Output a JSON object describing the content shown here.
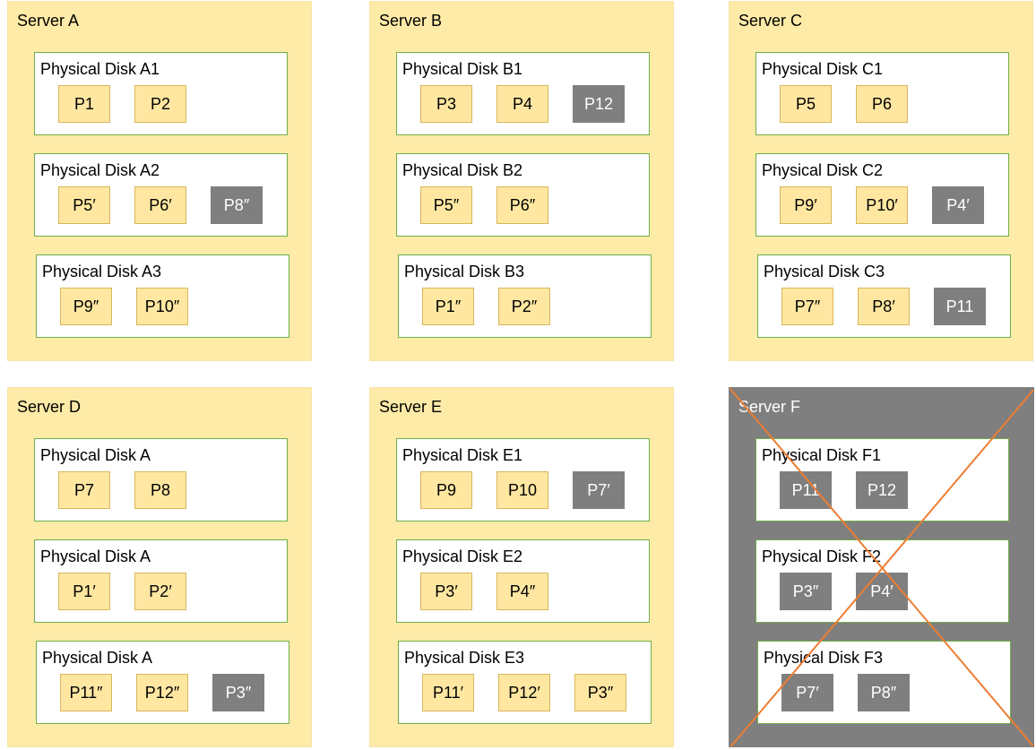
{
  "colors": {
    "server_fill": "#FFEBA8",
    "failed_fill": "#7F7F7F",
    "disk_border": "#6FAE48",
    "partition_fill": "#FFE7A1",
    "partition_border": "#D8B65A",
    "grey_partition_fill": "#7F7F7F",
    "cross_line": "#ED7D31"
  },
  "servers": [
    {
      "label": "Server A",
      "failed": false,
      "disks": [
        {
          "label": "Physical Disk A1",
          "partitions": [
            {
              "label": "P1",
              "grey": false
            },
            {
              "label": "P2",
              "grey": false
            }
          ]
        },
        {
          "label": "Physical Disk A2",
          "partitions": [
            {
              "label": "P5′",
              "grey": false
            },
            {
              "label": "P6′",
              "grey": false
            },
            {
              "label": "P8″",
              "grey": true
            }
          ]
        },
        {
          "label": "Physical Disk A3",
          "partitions": [
            {
              "label": "P9″",
              "grey": false
            },
            {
              "label": "P10″",
              "grey": false
            }
          ]
        }
      ]
    },
    {
      "label": "Server B",
      "failed": false,
      "disks": [
        {
          "label": "Physical Disk B1",
          "partitions": [
            {
              "label": "P3",
              "grey": false
            },
            {
              "label": "P4",
              "grey": false
            },
            {
              "label": "P12",
              "grey": true
            }
          ]
        },
        {
          "label": "Physical Disk B2",
          "partitions": [
            {
              "label": "P5″",
              "grey": false
            },
            {
              "label": "P6″",
              "grey": false
            }
          ]
        },
        {
          "label": "Physical Disk B3",
          "partitions": [
            {
              "label": "P1″",
              "grey": false
            },
            {
              "label": "P2″",
              "grey": false
            }
          ]
        }
      ]
    },
    {
      "label": "Server C",
      "failed": false,
      "disks": [
        {
          "label": "Physical Disk C1",
          "partitions": [
            {
              "label": "P5",
              "grey": false
            },
            {
              "label": "P6",
              "grey": false
            }
          ]
        },
        {
          "label": "Physical Disk C2",
          "partitions": [
            {
              "label": "P9′",
              "grey": false
            },
            {
              "label": "P10′",
              "grey": false
            },
            {
              "label": "P4′",
              "grey": true
            }
          ]
        },
        {
          "label": "Physical Disk C3",
          "partitions": [
            {
              "label": "P7″",
              "grey": false
            },
            {
              "label": "P8′",
              "grey": false
            },
            {
              "label": "P11",
              "grey": true
            }
          ]
        }
      ]
    },
    {
      "label": "Server D",
      "failed": false,
      "disks": [
        {
          "label": "Physical Disk A",
          "partitions": [
            {
              "label": "P7",
              "grey": false
            },
            {
              "label": "P8",
              "grey": false
            }
          ]
        },
        {
          "label": "Physical Disk A",
          "partitions": [
            {
              "label": "P1′",
              "grey": false
            },
            {
              "label": "P2′",
              "grey": false
            }
          ]
        },
        {
          "label": "Physical Disk A",
          "partitions": [
            {
              "label": "P11″",
              "grey": false
            },
            {
              "label": "P12″",
              "grey": false
            },
            {
              "label": "P3″",
              "grey": true
            }
          ]
        }
      ]
    },
    {
      "label": "Server E",
      "failed": false,
      "disks": [
        {
          "label": "Physical Disk E1",
          "partitions": [
            {
              "label": "P9",
              "grey": false
            },
            {
              "label": "P10",
              "grey": false
            },
            {
              "label": "P7′",
              "grey": true
            }
          ]
        },
        {
          "label": "Physical Disk E2",
          "partitions": [
            {
              "label": "P3′",
              "grey": false
            },
            {
              "label": "P4″",
              "grey": false
            }
          ]
        },
        {
          "label": "Physical Disk E3",
          "partitions": [
            {
              "label": "P11′",
              "grey": false
            },
            {
              "label": "P12′",
              "grey": false
            },
            {
              "label": "P3″",
              "grey": false
            }
          ]
        }
      ]
    },
    {
      "label": "Server F",
      "failed": true,
      "disks": [
        {
          "label": "Physical Disk F1",
          "partitions": [
            {
              "label": "P11",
              "grey": true
            },
            {
              "label": "P12",
              "grey": true
            }
          ]
        },
        {
          "label": "Physical Disk F2",
          "partitions": [
            {
              "label": "P3″",
              "grey": true
            },
            {
              "label": "P4′",
              "grey": true
            }
          ]
        },
        {
          "label": "Physical Disk F3",
          "partitions": [
            {
              "label": "P7′",
              "grey": true
            },
            {
              "label": "P8″",
              "grey": true
            }
          ]
        }
      ]
    }
  ]
}
